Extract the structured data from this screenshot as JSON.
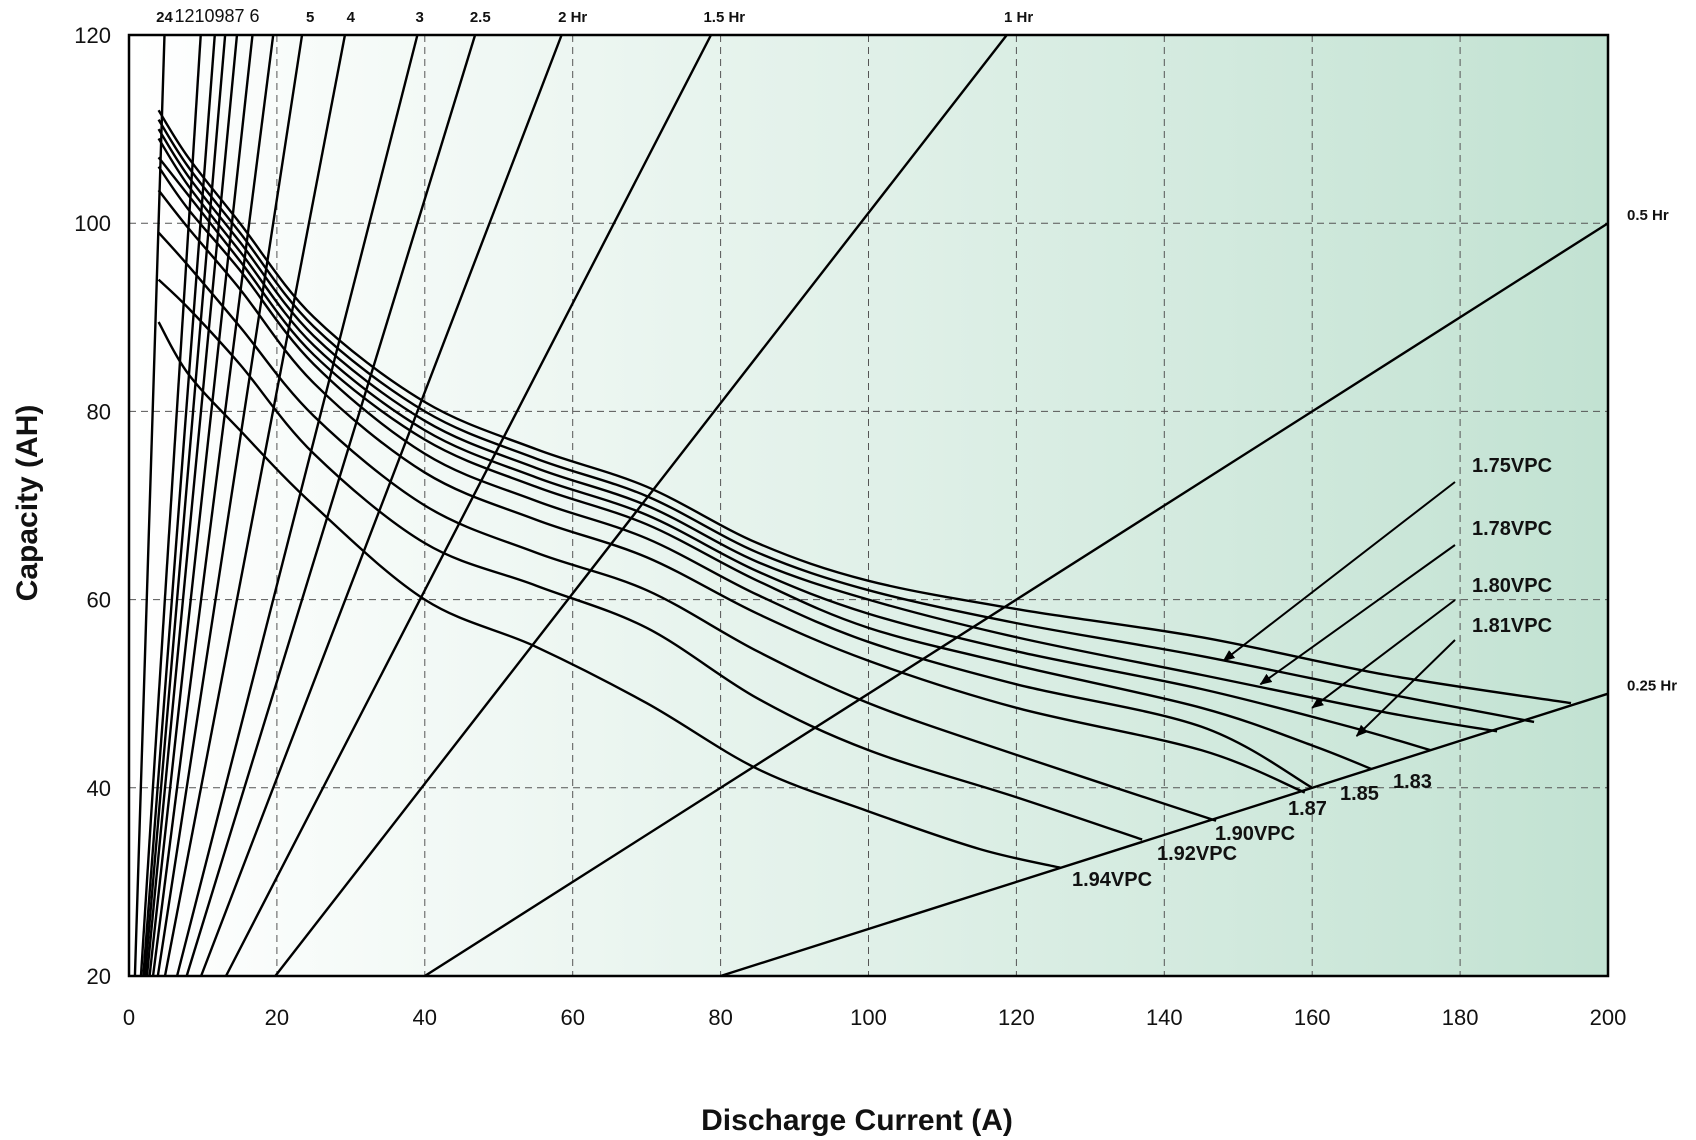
{
  "chart_data": {
    "type": "line",
    "xlabel": "Discharge Current (A)",
    "ylabel": "Capacity (AH)",
    "xlim": [
      0,
      200
    ],
    "ylim": [
      20,
      120
    ],
    "x_ticks": [
      0,
      20,
      40,
      60,
      80,
      100,
      120,
      140,
      160,
      180,
      200
    ],
    "y_ticks": [
      20,
      40,
      60,
      80,
      100,
      120
    ],
    "grid": true,
    "background_gradient": [
      "#ffffff",
      "#c2e2d2"
    ],
    "rate_lines": [
      {
        "label": "24",
        "top_current": 4.8
      },
      {
        "label": "12",
        "top_current": 9.7
      },
      {
        "label": "10",
        "top_current": 11.6
      },
      {
        "label": "9",
        "top_current": 13.0
      },
      {
        "label": "8",
        "top_current": 14.6
      },
      {
        "label": "7",
        "top_current": 16.7
      },
      {
        "label": "6",
        "top_current": 19.5
      },
      {
        "label": "5",
        "top_current": 23.4
      },
      {
        "label": "4",
        "top_current": 29.2
      },
      {
        "label": "3",
        "top_current": 39.0
      },
      {
        "label": "2.5",
        "top_current": 46.8
      },
      {
        "label": "2  Hr",
        "top_current": 58.5
      },
      {
        "label": "1.5 Hr",
        "top_current": 78.7
      },
      {
        "label": "1  Hr",
        "top_current": 118.7
      },
      {
        "label": "0.5  Hr",
        "top_current": 200,
        "top_capacity": 100
      },
      {
        "label": "0.25  Hr",
        "top_current": 200,
        "top_capacity": 50
      }
    ],
    "rate_line_top_labels": [
      "24",
      "1210987 6",
      "5",
      "4",
      "3",
      "2.5",
      "2  Hr",
      "1.5 Hr",
      "1  Hr"
    ],
    "rate_line_side_labels": [
      "0.5  Hr",
      "0.25  Hr"
    ],
    "series": [
      {
        "name": "1.75VPC",
        "x": [
          4,
          8,
          15,
          25,
          40,
          55,
          70,
          85,
          100,
          120,
          145,
          170,
          195
        ],
        "y": [
          112,
          107,
          100,
          90,
          81,
          76,
          72,
          66,
          62,
          59,
          56,
          52,
          49
        ]
      },
      {
        "name": "1.78VPC",
        "x": [
          4,
          8,
          15,
          25,
          40,
          55,
          70,
          85,
          100,
          120,
          145,
          170,
          190
        ],
        "y": [
          111,
          106,
          99,
          89,
          80,
          75,
          71,
          65,
          61,
          57.5,
          54,
          50,
          47
        ]
      },
      {
        "name": "1.80VPC",
        "x": [
          4,
          8,
          15,
          25,
          40,
          55,
          70,
          85,
          100,
          120,
          145,
          170,
          185
        ],
        "y": [
          110,
          105,
          98,
          88,
          79,
          74,
          70,
          64,
          60,
          56,
          52,
          48,
          46
        ]
      },
      {
        "name": "1.81VPC",
        "x": [
          4,
          8,
          15,
          25,
          40,
          55,
          70,
          85,
          100,
          120,
          145,
          165,
          176
        ],
        "y": [
          109,
          104,
          97,
          87,
          78,
          73,
          69,
          63,
          58.5,
          54.5,
          50.5,
          46.5,
          44
        ]
      },
      {
        "name": "1.83",
        "x": [
          4,
          8,
          15,
          25,
          40,
          55,
          70,
          85,
          100,
          120,
          145,
          160,
          168
        ],
        "y": [
          107,
          103,
          96,
          86,
          77,
          72,
          68,
          62,
          57,
          53,
          48.5,
          44.5,
          42
        ]
      },
      {
        "name": "1.85",
        "x": [
          4,
          8,
          15,
          25,
          40,
          55,
          70,
          85,
          100,
          120,
          145,
          160
        ],
        "y": [
          106,
          101.5,
          95,
          85,
          75.5,
          70.5,
          66.5,
          60.5,
          55.5,
          51,
          46.5,
          40
        ]
      },
      {
        "name": "1.87",
        "x": [
          4,
          8,
          15,
          25,
          40,
          55,
          70,
          85,
          100,
          120,
          145,
          159
        ],
        "y": [
          103.5,
          99.5,
          93,
          83,
          73.5,
          68.5,
          64.5,
          58.5,
          53.5,
          48.5,
          44,
          39.5
        ]
      },
      {
        "name": "1.90VPC",
        "x": [
          4,
          8,
          15,
          25,
          40,
          55,
          70,
          85,
          100,
          120,
          147
        ],
        "y": [
          99,
          95.5,
          89,
          79.5,
          70,
          65,
          61,
          54.5,
          49,
          43.5,
          36.5
        ]
      },
      {
        "name": "1.92VPC",
        "x": [
          4,
          8,
          15,
          25,
          40,
          55,
          70,
          85,
          100,
          120,
          137
        ],
        "y": [
          94,
          91,
          85,
          75.5,
          66,
          61.5,
          57,
          49.5,
          44,
          39,
          34.5
        ]
      },
      {
        "name": "1.94VPC",
        "x": [
          4,
          8,
          15,
          25,
          40,
          55,
          70,
          85,
          100,
          115,
          126
        ],
        "y": [
          89.5,
          84,
          78,
          70,
          60,
          55,
          49,
          42,
          37.5,
          33.5,
          31.5
        ]
      }
    ],
    "annotations": [
      {
        "text": "1.75VPC",
        "arrow_to": [
          148,
          53.5
        ]
      },
      {
        "text": "1.78VPC",
        "arrow_to": [
          153,
          51
        ]
      },
      {
        "text": "1.80VPC",
        "arrow_to": [
          160,
          48.5
        ]
      },
      {
        "text": "1.81VPC",
        "arrow_to": [
          166,
          45.5
        ]
      },
      {
        "text": "1.83"
      },
      {
        "text": "1.85"
      },
      {
        "text": "1.87"
      },
      {
        "text": "1.90VPC"
      },
      {
        "text": "1.92VPC"
      },
      {
        "text": "1.94VPC"
      }
    ]
  }
}
